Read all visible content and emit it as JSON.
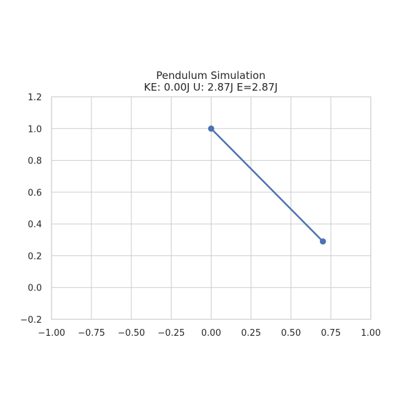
{
  "chart_data": {
    "type": "line",
    "title": "Pendulum Simulation",
    "subtitle": "KE: 0.00J U: 2.87J  E=2.87J",
    "xlabel": "",
    "ylabel": "",
    "xlim": [
      -1.0,
      1.0
    ],
    "ylim": [
      -0.2,
      1.2
    ],
    "grid": true,
    "x_ticks": [
      "−1.00",
      "−0.75",
      "−0.50",
      "−0.25",
      "0.00",
      "0.25",
      "0.50",
      "0.75",
      "1.00"
    ],
    "x_tick_values": [
      -1.0,
      -0.75,
      -0.5,
      -0.25,
      0.0,
      0.25,
      0.5,
      0.75,
      1.0
    ],
    "y_ticks": [
      "−0.2",
      "0.0",
      "0.2",
      "0.4",
      "0.6",
      "0.8",
      "1.0",
      "1.2"
    ],
    "y_tick_values": [
      -0.2,
      0.0,
      0.2,
      0.4,
      0.6,
      0.8,
      1.0,
      1.2
    ],
    "series": [
      {
        "x": [
          0.0,
          0.7
        ],
        "y": [
          1.0,
          0.29
        ],
        "color": "#4c72b0",
        "marker": "circle"
      }
    ]
  }
}
